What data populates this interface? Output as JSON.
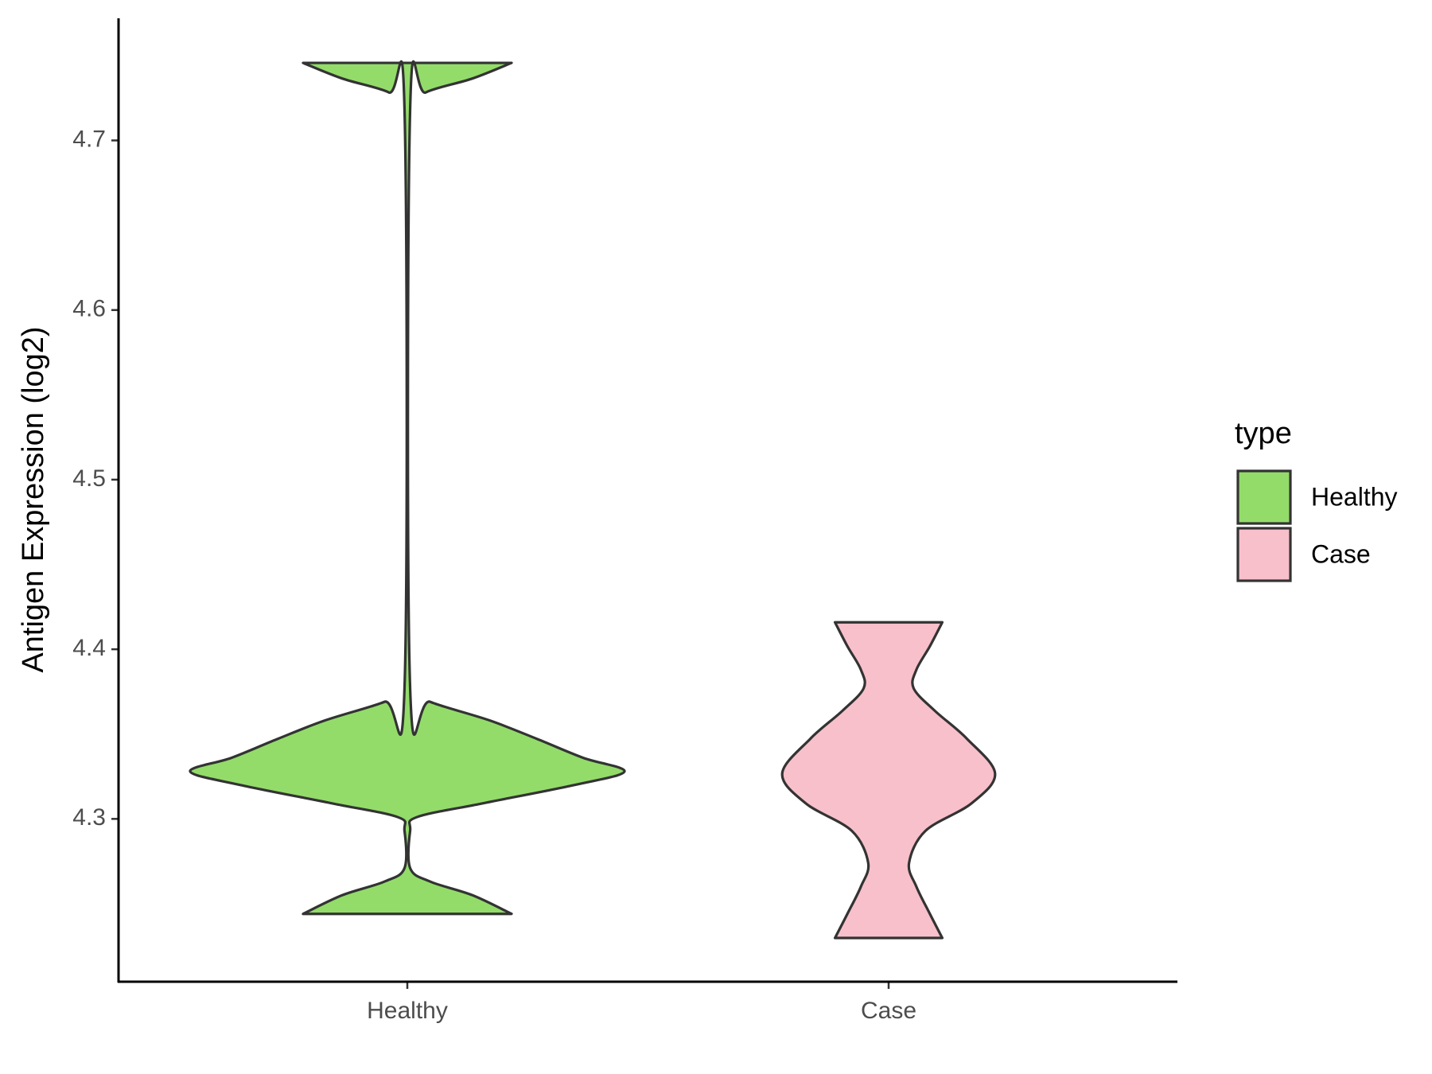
{
  "chart_data": {
    "type": "violin",
    "y_label": "Antigen Expression (log2)",
    "categories": [
      "Healthy",
      "Case"
    ],
    "legend_title": "type",
    "legend": "right",
    "ylim": [
      4.204,
      4.772
    ],
    "yticks": [
      4.3,
      4.4,
      4.5,
      4.6,
      4.7
    ],
    "series": [
      {
        "name": "Healthy",
        "color": "#93dc6a",
        "y": [
          4.7457,
          4.7365,
          4.7283,
          4.7185,
          4.377,
          4.369,
          4.358,
          4.347,
          4.336,
          4.328,
          4.32,
          4.309,
          4.301,
          4.293,
          4.271,
          4.263,
          4.255,
          4.244
        ],
        "density": [
          0.48,
          0.3,
          0.085,
          0.013,
          0.013,
          0.106,
          0.38,
          0.6,
          0.81,
          1.0,
          0.77,
          0.34,
          0.043,
          0.013,
          0.013,
          0.106,
          0.3,
          0.48
        ]
      },
      {
        "name": "Case",
        "color": "#f8c0cb",
        "y": [
          4.4159,
          4.4018,
          4.388,
          4.377,
          4.3637,
          4.3473,
          4.3267,
          4.309,
          4.293,
          4.274,
          4.26,
          4.244,
          4.2298
        ],
        "density": [
          0.247,
          0.19,
          0.128,
          0.115,
          0.213,
          0.36,
          0.49,
          0.38,
          0.17,
          0.094,
          0.128,
          0.19,
          0.247
        ]
      }
    ]
  }
}
